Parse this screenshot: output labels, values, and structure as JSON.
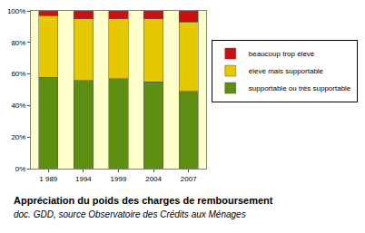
{
  "chart_data": {
    "type": "bar",
    "stacked": true,
    "title": "Appréciation du poids des charges de remboursement",
    "subtitle": "doc. GDD, source Observatoire des Crédits aux Ménages",
    "categories": [
      "1 989",
      "1994",
      "1999",
      "2004",
      "2007"
    ],
    "series": [
      {
        "name": "supportable ou très supportable",
        "color": "#5f8f12",
        "values": [
          58,
          56,
          57,
          55,
          49
        ]
      },
      {
        "name": "élevé mais supportable",
        "color": "#e6c800",
        "values": [
          39,
          39,
          38,
          40,
          44
        ]
      },
      {
        "name": "beaucoup trop élevé",
        "color": "#cc1010",
        "values": [
          3,
          5,
          5,
          5,
          7
        ]
      }
    ],
    "ylim": [
      0,
      100
    ],
    "yticks": [
      {
        "value": 0,
        "label": "0%"
      },
      {
        "value": 20,
        "label": "20%"
      },
      {
        "value": 40,
        "label": "40%"
      },
      {
        "value": 60,
        "label": "60%"
      },
      {
        "value": 80,
        "label": "80%"
      },
      {
        "value": 100,
        "label": "100%"
      }
    ],
    "grid": false,
    "legend": "right"
  }
}
